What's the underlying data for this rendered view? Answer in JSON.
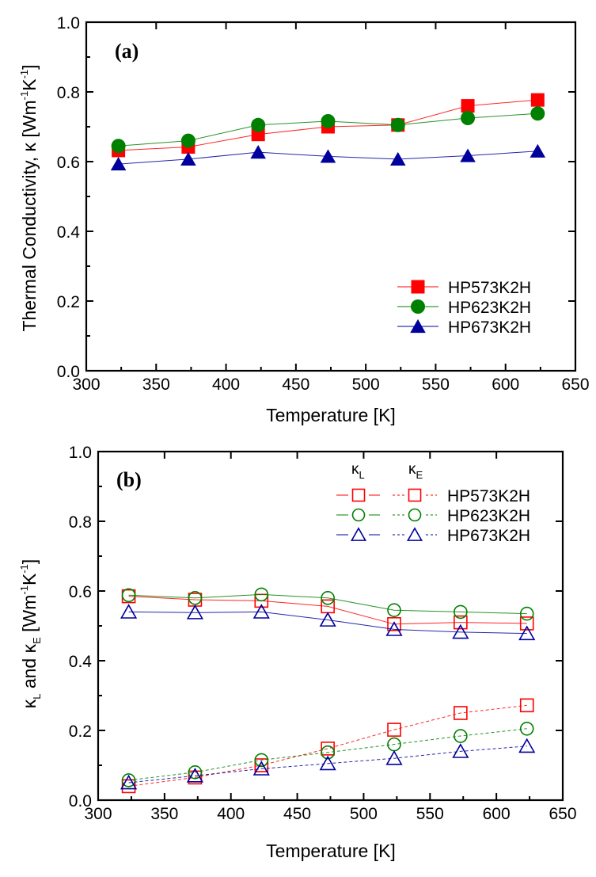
{
  "chart_data": [
    {
      "type": "line",
      "panel_label": "(a)",
      "title": "",
      "xlabel": "Temperature [K]",
      "ylabel": "Thermal Conductivity, κ [Wm⁻¹K⁻¹]",
      "ylabel_parts": {
        "main": "Thermal Conductivity, κ [Wm",
        "sup1": "-1",
        "mid": "K",
        "sup2": "-1",
        "end": "]"
      },
      "xlim": [
        300,
        650
      ],
      "ylim": [
        0.0,
        1.0
      ],
      "xticks": [
        300,
        350,
        400,
        450,
        500,
        550,
        600,
        650
      ],
      "xtick_labels": [
        "300",
        "350",
        "400",
        "450",
        "500",
        "550",
        "600",
        "650"
      ],
      "yticks": [
        0.0,
        0.2,
        0.4,
        0.6,
        0.8,
        1.0
      ],
      "ytick_labels": [
        "0.0",
        "0.2",
        "0.4",
        "0.6",
        "0.8",
        "1.0"
      ],
      "grid": false,
      "legend_position": "lower-right",
      "x": [
        323,
        373,
        423,
        473,
        523,
        573,
        623
      ],
      "series": [
        {
          "name": "HP573K2H",
          "color": "#ff0000",
          "marker": "square",
          "filled": true,
          "line": "solid",
          "values": [
            0.632,
            0.642,
            0.678,
            0.7,
            0.705,
            0.76,
            0.777
          ]
        },
        {
          "name": "HP623K2H",
          "color": "#008000",
          "marker": "circle",
          "filled": true,
          "line": "solid",
          "values": [
            0.645,
            0.66,
            0.705,
            0.716,
            0.705,
            0.725,
            0.738
          ]
        },
        {
          "name": "HP673K2H",
          "color": "#00009c",
          "marker": "triangle",
          "filled": true,
          "line": "solid",
          "values": [
            0.593,
            0.607,
            0.627,
            0.615,
            0.607,
            0.617,
            0.63
          ]
        }
      ]
    },
    {
      "type": "line",
      "panel_label": "(b)",
      "title": "",
      "xlabel": "Temperature [K]",
      "ylabel": "κL and κE [Wm⁻¹K⁻¹]",
      "ylabel_parts": {
        "k1": "κ",
        "sub1": "L",
        "and": " and κ",
        "sub2": "E",
        "unit": " [Wm",
        "sup1": "-1",
        "mid": "K",
        "sup2": "-1",
        "end": "]"
      },
      "xlim": [
        300,
        650
      ],
      "ylim": [
        0.0,
        1.0
      ],
      "xticks": [
        300,
        350,
        400,
        450,
        500,
        550,
        600,
        650
      ],
      "xtick_labels": [
        "300",
        "350",
        "400",
        "450",
        "500",
        "550",
        "600",
        "650"
      ],
      "yticks": [
        0.0,
        0.2,
        0.4,
        0.6,
        0.8,
        1.0
      ],
      "ytick_labels": [
        "0.0",
        "0.2",
        "0.4",
        "0.6",
        "0.8",
        "1.0"
      ],
      "grid": false,
      "legend_position": "top-right",
      "legend_headers": {
        "kl": "κ",
        "kl_sub": "L",
        "ke": "κ",
        "ke_sub": "E"
      },
      "x": [
        323,
        373,
        423,
        473,
        523,
        573,
        623
      ],
      "series": [
        {
          "name": "HP573K2H",
          "quantity": "κL",
          "color": "#ff0000",
          "marker": "square",
          "filled": false,
          "line": "solid",
          "values": [
            0.585,
            0.575,
            0.572,
            0.556,
            0.505,
            0.51,
            0.507
          ]
        },
        {
          "name": "HP623K2H",
          "quantity": "κL",
          "color": "#008000",
          "marker": "circle",
          "filled": false,
          "line": "solid",
          "values": [
            0.588,
            0.58,
            0.59,
            0.58,
            0.545,
            0.54,
            0.535
          ]
        },
        {
          "name": "HP673K2H",
          "quantity": "κL",
          "color": "#00009c",
          "marker": "triangle",
          "filled": false,
          "line": "solid",
          "values": [
            0.54,
            0.538,
            0.54,
            0.517,
            0.49,
            0.482,
            0.478
          ]
        },
        {
          "name": "HP573K2H",
          "quantity": "κE",
          "color": "#ff0000",
          "marker": "square",
          "filled": false,
          "line": "dashed",
          "values": [
            0.04,
            0.065,
            0.1,
            0.148,
            0.202,
            0.25,
            0.272
          ]
        },
        {
          "name": "HP623K2H",
          "quantity": "κE",
          "color": "#008000",
          "marker": "circle",
          "filled": false,
          "line": "dashed",
          "values": [
            0.057,
            0.08,
            0.115,
            0.137,
            0.16,
            0.184,
            0.205
          ]
        },
        {
          "name": "HP673K2H",
          "quantity": "κE",
          "color": "#00009c",
          "marker": "triangle",
          "filled": false,
          "line": "dashed",
          "values": [
            0.05,
            0.07,
            0.09,
            0.105,
            0.12,
            0.14,
            0.155
          ]
        }
      ]
    }
  ]
}
